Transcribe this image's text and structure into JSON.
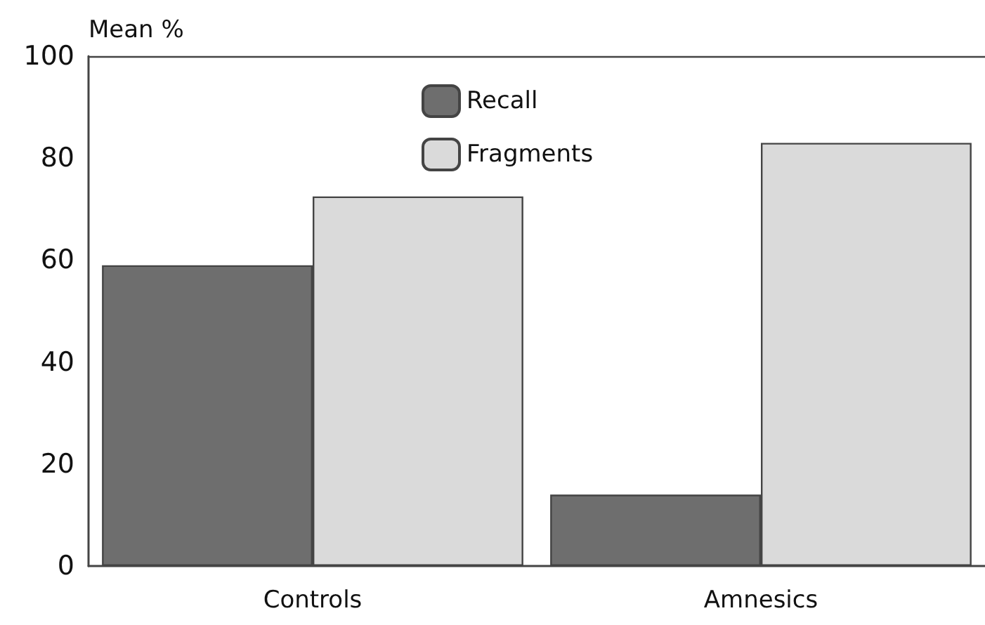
{
  "chart_data": {
    "type": "bar",
    "ylabel": "Mean %",
    "categories": [
      "Controls",
      "Amnesics"
    ],
    "series": [
      {
        "name": "Recall",
        "color": "#6e6e6e",
        "values": [
          59,
          14
        ]
      },
      {
        "name": "Fragments",
        "color": "#dadada",
        "values": [
          72.5,
          83
        ]
      }
    ],
    "ylim": [
      0,
      100
    ],
    "yticks": [
      0,
      20,
      40,
      60,
      80,
      100
    ],
    "grid": false,
    "legend": "top"
  }
}
